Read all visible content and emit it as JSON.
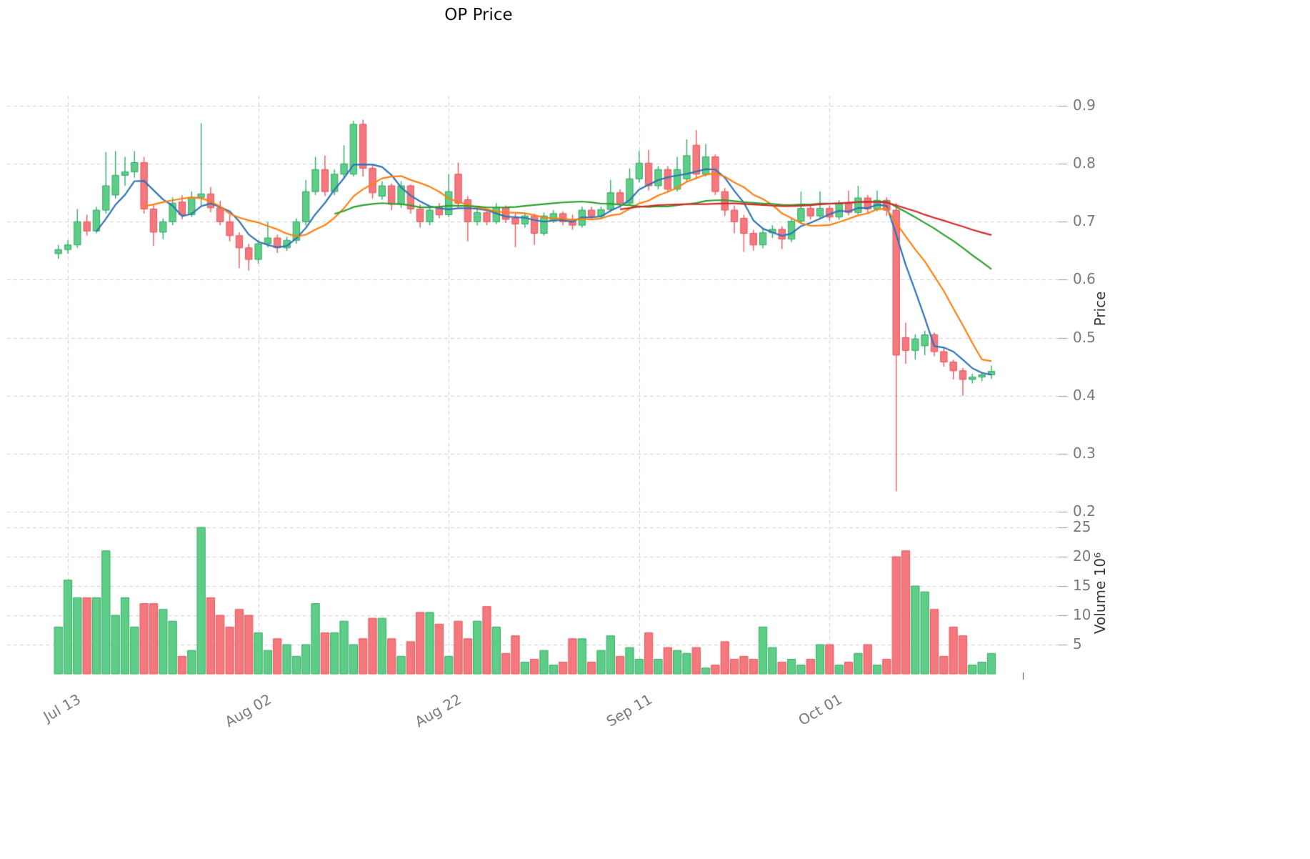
{
  "colors": {
    "up": "#5ece87",
    "up_edge": "#2fa866",
    "down": "#f4787d",
    "down_edge": "#e4555c",
    "grid": "#cfcfcf",
    "tick_text": "#7a7a7a",
    "axis_tick_mark": "#999999",
    "background": "#ffffff"
  },
  "chart_data": {
    "type": "candlestick",
    "title": "OP Price",
    "ylabel": "Price",
    "ylabel_volume": "Volume  10⁶",
    "price_ticks": [
      0.2,
      0.3,
      0.4,
      0.5,
      0.6,
      0.7,
      0.8,
      0.9
    ],
    "price_ylim": [
      0.185,
      0.92
    ],
    "volume_ticks": [
      5,
      10,
      15,
      20,
      25
    ],
    "volume_ylim": [
      0,
      26
    ],
    "grid": "dashed",
    "x_tick_labels": [
      "Jul 13",
      "Aug 02",
      "Aug 22",
      "Sep 11",
      "Oct 01"
    ],
    "x_tick_indices": [
      1,
      21,
      41,
      61,
      81
    ],
    "moving_averages": [
      {
        "window": 5,
        "color": "#2e73b5"
      },
      {
        "window": 10,
        "color": "#ff7f0e"
      },
      {
        "window": 30,
        "color": "#2ca02c"
      },
      {
        "window": 60,
        "color": "#d62728"
      }
    ],
    "candles": [
      [
        0.645,
        0.66,
        0.636,
        0.652
      ],
      [
        0.652,
        0.668,
        0.645,
        0.66
      ],
      [
        0.66,
        0.722,
        0.655,
        0.7
      ],
      [
        0.7,
        0.712,
        0.676,
        0.684
      ],
      [
        0.684,
        0.726,
        0.68,
        0.72
      ],
      [
        0.72,
        0.82,
        0.714,
        0.762
      ],
      [
        0.746,
        0.822,
        0.74,
        0.78
      ],
      [
        0.78,
        0.812,
        0.762,
        0.786
      ],
      [
        0.786,
        0.822,
        0.776,
        0.802
      ],
      [
        0.802,
        0.812,
        0.714,
        0.722
      ],
      [
        0.722,
        0.73,
        0.658,
        0.682
      ],
      [
        0.682,
        0.706,
        0.67,
        0.7
      ],
      [
        0.7,
        0.742,
        0.694,
        0.732
      ],
      [
        0.734,
        0.746,
        0.704,
        0.712
      ],
      [
        0.712,
        0.752,
        0.708,
        0.742
      ],
      [
        0.742,
        0.87,
        0.728,
        0.748
      ],
      [
        0.748,
        0.76,
        0.716,
        0.724
      ],
      [
        0.724,
        0.736,
        0.694,
        0.7
      ],
      [
        0.7,
        0.712,
        0.666,
        0.676
      ],
      [
        0.676,
        0.682,
        0.62,
        0.655
      ],
      [
        0.655,
        0.662,
        0.616,
        0.635
      ],
      [
        0.635,
        0.668,
        0.628,
        0.662
      ],
      [
        0.662,
        0.7,
        0.656,
        0.672
      ],
      [
        0.672,
        0.678,
        0.646,
        0.655
      ],
      [
        0.655,
        0.674,
        0.65,
        0.668
      ],
      [
        0.668,
        0.706,
        0.662,
        0.7
      ],
      [
        0.7,
        0.772,
        0.694,
        0.752
      ],
      [
        0.752,
        0.812,
        0.746,
        0.79
      ],
      [
        0.79,
        0.814,
        0.744,
        0.752
      ],
      [
        0.752,
        0.79,
        0.746,
        0.782
      ],
      [
        0.782,
        0.832,
        0.776,
        0.8
      ],
      [
        0.782,
        0.874,
        0.778,
        0.868
      ],
      [
        0.868,
        0.876,
        0.778,
        0.792
      ],
      [
        0.792,
        0.8,
        0.74,
        0.75
      ],
      [
        0.744,
        0.77,
        0.738,
        0.762
      ],
      [
        0.762,
        0.766,
        0.72,
        0.73
      ],
      [
        0.73,
        0.77,
        0.724,
        0.762
      ],
      [
        0.762,
        0.764,
        0.714,
        0.722
      ],
      [
        0.722,
        0.73,
        0.69,
        0.7
      ],
      [
        0.7,
        0.726,
        0.694,
        0.72
      ],
      [
        0.726,
        0.732,
        0.706,
        0.712
      ],
      [
        0.712,
        0.782,
        0.708,
        0.752
      ],
      [
        0.782,
        0.802,
        0.724,
        0.732
      ],
      [
        0.738,
        0.744,
        0.666,
        0.7
      ],
      [
        0.7,
        0.724,
        0.694,
        0.716
      ],
      [
        0.716,
        0.72,
        0.694,
        0.7
      ],
      [
        0.7,
        0.732,
        0.696,
        0.724
      ],
      [
        0.724,
        0.728,
        0.698,
        0.704
      ],
      [
        0.706,
        0.714,
        0.656,
        0.696
      ],
      [
        0.696,
        0.716,
        0.69,
        0.71
      ],
      [
        0.71,
        0.714,
        0.66,
        0.68
      ],
      [
        0.68,
        0.716,
        0.676,
        0.71
      ],
      [
        0.702,
        0.72,
        0.698,
        0.714
      ],
      [
        0.714,
        0.718,
        0.694,
        0.7
      ],
      [
        0.704,
        0.712,
        0.686,
        0.694
      ],
      [
        0.694,
        0.726,
        0.69,
        0.72
      ],
      [
        0.72,
        0.726,
        0.704,
        0.71
      ],
      [
        0.71,
        0.726,
        0.706,
        0.721
      ],
      [
        0.721,
        0.772,
        0.716,
        0.75
      ],
      [
        0.75,
        0.756,
        0.724,
        0.732
      ],
      [
        0.732,
        0.792,
        0.728,
        0.774
      ],
      [
        0.774,
        0.822,
        0.768,
        0.801
      ],
      [
        0.801,
        0.824,
        0.754,
        0.762
      ],
      [
        0.762,
        0.796,
        0.756,
        0.79
      ],
      [
        0.79,
        0.796,
        0.75,
        0.756
      ],
      [
        0.756,
        0.812,
        0.752,
        0.79
      ],
      [
        0.774,
        0.842,
        0.768,
        0.814
      ],
      [
        0.832,
        0.858,
        0.774,
        0.782
      ],
      [
        0.782,
        0.834,
        0.778,
        0.812
      ],
      [
        0.812,
        0.816,
        0.746,
        0.752
      ],
      [
        0.752,
        0.758,
        0.71,
        0.72
      ],
      [
        0.72,
        0.728,
        0.68,
        0.7
      ],
      [
        0.706,
        0.712,
        0.648,
        0.68
      ],
      [
        0.68,
        0.686,
        0.65,
        0.66
      ],
      [
        0.66,
        0.688,
        0.654,
        0.681
      ],
      [
        0.681,
        0.694,
        0.672,
        0.687
      ],
      [
        0.687,
        0.692,
        0.653,
        0.67
      ],
      [
        0.67,
        0.706,
        0.665,
        0.701
      ],
      [
        0.701,
        0.752,
        0.696,
        0.723
      ],
      [
        0.723,
        0.728,
        0.704,
        0.71
      ],
      [
        0.71,
        0.752,
        0.706,
        0.723
      ],
      [
        0.723,
        0.728,
        0.701,
        0.708
      ],
      [
        0.708,
        0.737,
        0.703,
        0.731
      ],
      [
        0.731,
        0.754,
        0.711,
        0.716
      ],
      [
        0.716,
        0.762,
        0.712,
        0.741
      ],
      [
        0.741,
        0.746,
        0.714,
        0.722
      ],
      [
        0.722,
        0.754,
        0.718,
        0.737
      ],
      [
        0.737,
        0.742,
        0.71,
        0.72
      ],
      [
        0.72,
        0.732,
        0.235,
        0.47
      ],
      [
        0.5,
        0.526,
        0.455,
        0.478
      ],
      [
        0.478,
        0.506,
        0.462,
        0.498
      ],
      [
        0.486,
        0.512,
        0.47,
        0.505
      ],
      [
        0.505,
        0.509,
        0.468,
        0.476
      ],
      [
        0.476,
        0.482,
        0.45,
        0.458
      ],
      [
        0.458,
        0.462,
        0.428,
        0.443
      ],
      [
        0.443,
        0.448,
        0.4,
        0.428
      ],
      [
        0.428,
        0.438,
        0.421,
        0.432
      ],
      [
        0.432,
        0.441,
        0.425,
        0.436
      ],
      [
        0.436,
        0.452,
        0.429,
        0.442
      ]
    ],
    "volumes": [
      8,
      16,
      13,
      13,
      13,
      21,
      10,
      13,
      8,
      12,
      12,
      11,
      9,
      3,
      4,
      25,
      13,
      10,
      8,
      11,
      10,
      7,
      4,
      6,
      5,
      3,
      5,
      12,
      7,
      7,
      9,
      5,
      6,
      9.5,
      9.5,
      6,
      3,
      5.5,
      10.5,
      10.5,
      8.5,
      3,
      9,
      6,
      9,
      11.5,
      8,
      3.5,
      6.5,
      2,
      2.5,
      4,
      1.5,
      2,
      6,
      6,
      2,
      4,
      6.5,
      3,
      4.5,
      2.5,
      7,
      2.5,
      4.5,
      4,
      3.5,
      4.5,
      1,
      1.5,
      5.5,
      2.5,
      3,
      2.5,
      8,
      4.5,
      2,
      2.5,
      1.5,
      2.5,
      5,
      5,
      1.5,
      2,
      3.5,
      5,
      1.5,
      2.5,
      20,
      21,
      15,
      14,
      11,
      3,
      8,
      6.5,
      1.5,
      2,
      3.5
    ]
  }
}
